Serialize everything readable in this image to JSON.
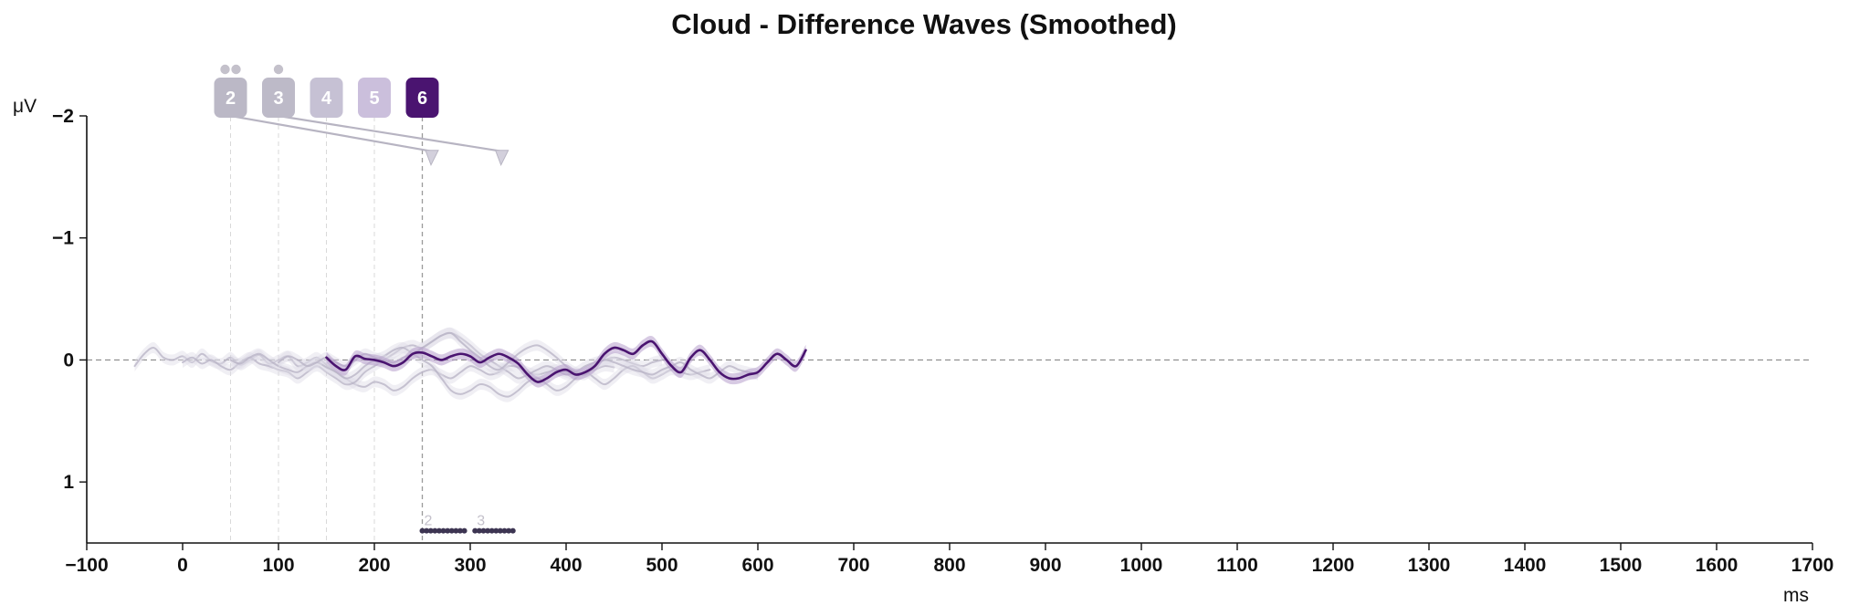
{
  "chart_data": {
    "type": "line",
    "title": "Cloud - Difference Waves (Smoothed)",
    "xlabel": "ms",
    "ylabel": "μV",
    "xlim": [
      -100,
      1700
    ],
    "ylim": [
      -2,
      1.5
    ],
    "y_inverted": true,
    "x_ticks": [
      -100,
      0,
      100,
      200,
      300,
      400,
      500,
      600,
      700,
      800,
      900,
      1000,
      1100,
      1200,
      1300,
      1400,
      1500,
      1600,
      1700
    ],
    "x_tick_labels": [
      "−100",
      "0",
      "100",
      "200",
      "300",
      "400",
      "500",
      "600",
      "700",
      "800",
      "900",
      "1000",
      "1100",
      "1200",
      "1300",
      "1400",
      "1500",
      "1600",
      "1700"
    ],
    "y_ticks": [
      -2,
      -1,
      0,
      1
    ],
    "y_tick_labels": [
      "−2",
      "−1",
      "0",
      "1"
    ],
    "grid": false,
    "zero_line": true,
    "colors": {
      "highlight": "#4a1470",
      "highlight_band": "#b79fcc",
      "faded": "#b7b2c4",
      "faded_band": "#dedbe6",
      "baseline": "#888888",
      "cluster_bar": "#3d3552"
    },
    "series": [
      {
        "label": "2",
        "highlight": false,
        "x": [
          -50,
          -40,
          -30,
          -20,
          -10,
          0,
          10,
          20,
          30,
          40,
          50,
          60,
          70,
          80,
          90,
          100,
          110,
          120,
          130,
          140,
          150,
          160,
          170,
          180,
          190,
          200,
          210,
          220,
          230,
          240,
          250,
          260,
          270,
          280,
          290,
          300,
          310,
          320,
          330,
          340,
          350,
          360,
          370,
          380,
          390,
          400,
          410,
          420,
          430,
          440,
          450
        ],
        "y": [
          0.05,
          -0.05,
          -0.1,
          -0.02,
          0.0,
          -0.03,
          0.02,
          -0.05,
          0.01,
          0.03,
          -0.02,
          0.04,
          0.0,
          -0.04,
          0.03,
          0.0,
          -0.03,
          0.05,
          0.02,
          -0.02,
          0.04,
          0.1,
          0.15,
          0.2,
          0.22,
          0.18,
          0.2,
          0.25,
          0.22,
          0.15,
          0.1,
          0.08,
          0.12,
          0.15,
          0.1,
          0.05,
          0.08,
          0.12,
          0.1,
          0.05,
          0.06,
          0.1,
          0.12,
          0.1,
          0.08,
          0.1,
          0.12,
          0.1,
          0.08,
          0.05,
          0.06
        ]
      },
      {
        "label": "3",
        "highlight": false,
        "x": [
          0,
          10,
          20,
          30,
          40,
          50,
          60,
          70,
          80,
          90,
          100,
          110,
          120,
          130,
          140,
          150,
          160,
          170,
          180,
          190,
          200,
          210,
          220,
          230,
          240,
          250,
          260,
          270,
          280,
          290,
          300,
          310,
          320,
          330,
          340,
          350,
          360,
          370,
          380,
          390,
          400,
          410,
          420,
          430,
          440,
          450,
          460,
          470,
          480,
          490,
          500
        ],
        "y": [
          0.02,
          -0.02,
          0.03,
          0.0,
          0.05,
          0.08,
          0.02,
          -0.02,
          0.03,
          0.05,
          0.08,
          0.1,
          0.15,
          0.1,
          0.05,
          0.1,
          0.15,
          0.2,
          0.18,
          0.1,
          0.05,
          0.0,
          -0.05,
          -0.1,
          -0.12,
          -0.1,
          -0.15,
          -0.2,
          -0.22,
          -0.18,
          -0.12,
          -0.05,
          0.0,
          0.05,
          0.1,
          0.15,
          0.12,
          0.08,
          0.05,
          0.08,
          0.12,
          0.1,
          0.05,
          0.02,
          0.0,
          -0.02,
          0.0,
          0.03,
          0.05,
          0.02,
          0.0
        ]
      },
      {
        "label": "4",
        "highlight": false,
        "x": [
          50,
          60,
          70,
          80,
          90,
          100,
          110,
          120,
          130,
          140,
          150,
          160,
          170,
          180,
          190,
          200,
          210,
          220,
          230,
          240,
          250,
          260,
          270,
          280,
          290,
          300,
          310,
          320,
          330,
          340,
          350,
          360,
          370,
          380,
          390,
          400,
          410,
          420,
          430,
          440,
          450,
          460,
          470,
          480,
          490,
          500,
          510,
          520,
          530,
          540,
          550
        ],
        "y": [
          0.0,
          0.03,
          -0.02,
          -0.05,
          0.0,
          0.05,
          0.08,
          0.1,
          0.05,
          0.02,
          0.06,
          0.1,
          0.15,
          0.12,
          0.05,
          0.0,
          -0.03,
          -0.08,
          -0.1,
          -0.05,
          0.0,
          0.05,
          0.15,
          0.25,
          0.28,
          0.25,
          0.2,
          0.22,
          0.28,
          0.3,
          0.25,
          0.18,
          0.15,
          0.2,
          0.25,
          0.22,
          0.15,
          0.1,
          0.15,
          0.2,
          0.15,
          0.08,
          0.05,
          0.1,
          0.15,
          0.12,
          0.08,
          0.1,
          0.12,
          0.1,
          0.08
        ]
      },
      {
        "label": "5",
        "highlight": false,
        "x": [
          100,
          110,
          120,
          130,
          140,
          150,
          160,
          170,
          180,
          190,
          200,
          210,
          220,
          230,
          240,
          250,
          260,
          270,
          280,
          290,
          300,
          310,
          320,
          330,
          340,
          350,
          360,
          370,
          380,
          390,
          400,
          410,
          420,
          430,
          440,
          450,
          460,
          470,
          480,
          490,
          500,
          510,
          520,
          530,
          540,
          550,
          560,
          570,
          580,
          590,
          600
        ],
        "y": [
          0.02,
          -0.03,
          0.0,
          0.05,
          0.02,
          -0.02,
          0.02,
          0.05,
          0.0,
          -0.05,
          -0.02,
          0.0,
          0.02,
          -0.02,
          -0.05,
          -0.1,
          -0.15,
          -0.2,
          -0.22,
          -0.15,
          -0.08,
          -0.02,
          0.05,
          0.08,
          0.02,
          -0.05,
          -0.1,
          -0.12,
          -0.08,
          -0.02,
          0.05,
          0.1,
          0.12,
          0.05,
          0.0,
          0.02,
          0.05,
          0.08,
          0.1,
          0.12,
          0.08,
          0.05,
          0.02,
          0.08,
          0.12,
          0.15,
          0.1,
          0.05,
          0.08,
          0.1,
          0.12
        ]
      },
      {
        "label": "6",
        "highlight": true,
        "x": [
          150,
          160,
          170,
          180,
          190,
          200,
          210,
          220,
          230,
          240,
          250,
          260,
          270,
          280,
          290,
          300,
          310,
          320,
          330,
          340,
          350,
          360,
          370,
          380,
          390,
          400,
          410,
          420,
          430,
          440,
          450,
          460,
          470,
          480,
          490,
          500,
          510,
          520,
          530,
          540,
          550,
          560,
          570,
          580,
          590,
          600,
          610,
          620,
          630,
          640,
          650
        ],
        "y": [
          -0.02,
          0.05,
          0.08,
          -0.03,
          -0.01,
          0.0,
          0.02,
          0.05,
          0.02,
          -0.05,
          -0.06,
          -0.03,
          0.0,
          -0.03,
          -0.05,
          -0.03,
          0.02,
          -0.02,
          -0.05,
          -0.02,
          0.03,
          0.12,
          0.18,
          0.15,
          0.1,
          0.08,
          0.12,
          0.1,
          0.05,
          -0.05,
          -0.1,
          -0.08,
          -0.05,
          -0.12,
          -0.15,
          -0.05,
          0.05,
          0.1,
          -0.02,
          -0.08,
          0.0,
          0.1,
          0.15,
          0.15,
          0.12,
          0.1,
          0.02,
          -0.05,
          0.0,
          0.05,
          -0.08
        ]
      }
    ],
    "onset_markers": [
      {
        "label": "2",
        "x": 50,
        "dots": 2,
        "arrow_to_x": 260
      },
      {
        "label": "3",
        "x": 100,
        "dots": 1,
        "arrow_to_x": 333
      },
      {
        "label": "4",
        "x": 150,
        "dots": 0
      },
      {
        "label": "5",
        "x": 200,
        "dots": 0
      },
      {
        "label": "6",
        "x": 250,
        "dots": 0
      }
    ],
    "significant_clusters": [
      {
        "label": "2",
        "x_start": 250,
        "x_end": 295
      },
      {
        "label": "3",
        "x_start": 305,
        "x_end": 345
      }
    ],
    "cluster_y": 1.4,
    "arrow_tip_y": -1.65
  }
}
